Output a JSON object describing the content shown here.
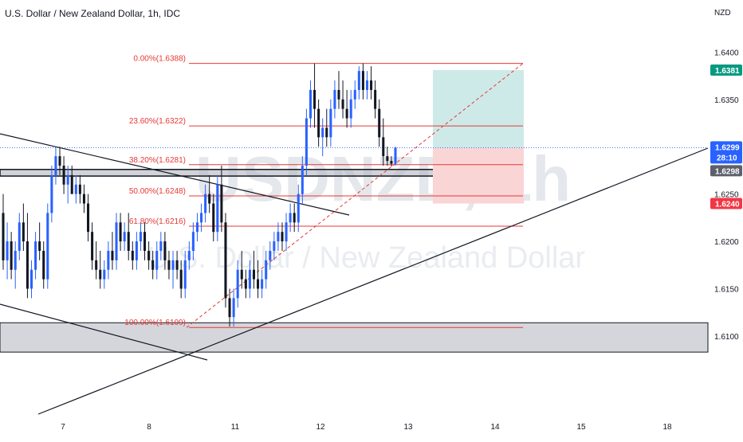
{
  "header": {
    "title": "U.S. Dollar / New Zealand Dollar, 1h, IDC",
    "currency": "NZD"
  },
  "watermark": {
    "symbol": "USDNZD, 1h",
    "name": "U.S. Dollar / New Zealand Dollar"
  },
  "colors": {
    "up": "#2962ff",
    "down": "#131722",
    "fib": "#e53935",
    "target_zone": "#cdeae8",
    "stop_zone": "#f9d5d5",
    "price_tag": "#2962ff",
    "target_tag": "#089981",
    "stop_tag": "#f23645",
    "bid_tag": "#131722",
    "zone_gray": "#9e9e9e"
  },
  "price_labels": {
    "target": "1.6381",
    "current": "1.6299",
    "countdown": "28:10",
    "bid": "1.6298",
    "stop": "1.6240"
  },
  "chart_data": {
    "type": "candlestick",
    "title": "U.S. Dollar / New Zealand Dollar, 1h, IDC",
    "ylim": [
      1.6073,
      1.6418
    ],
    "y_ticks": [
      "1.6400",
      "1.6350",
      "1.6250",
      "1.6200",
      "1.6150",
      "1.6100"
    ],
    "x_ticks": [
      "7",
      "8",
      "11",
      "12",
      "13",
      "14",
      "15",
      "18"
    ],
    "fibonacci": [
      {
        "label": "0.00%(1.6388)",
        "price": 1.6388
      },
      {
        "label": "23.60%(1.6322)",
        "price": 1.6322
      },
      {
        "label": "38.20%(1.6281)",
        "price": 1.6281
      },
      {
        "label": "50.00%(1.6248)",
        "price": 1.6248
      },
      {
        "label": "61.80%(1.6216)",
        "price": 1.6216
      },
      {
        "label": "100.00%(1.6109)",
        "price": 1.6109
      }
    ],
    "position": {
      "entry": 1.6299,
      "target": 1.6381,
      "stop": 1.624
    },
    "zones": [
      {
        "name": "resistance-band",
        "from": 1.6269,
        "to": 1.6276
      },
      {
        "name": "support-zone",
        "from": 1.6083,
        "to": 1.6114
      }
    ],
    "candles": [
      [
        1.623,
        1.625,
        1.617,
        1.618
      ],
      [
        1.618,
        1.622,
        1.616,
        1.62
      ],
      [
        1.62,
        1.621,
        1.616,
        1.617
      ],
      [
        1.617,
        1.62,
        1.615,
        1.619
      ],
      [
        1.619,
        1.623,
        1.618,
        1.622
      ],
      [
        1.622,
        1.624,
        1.619,
        1.62
      ],
      [
        1.62,
        1.623,
        1.614,
        1.615
      ],
      [
        1.615,
        1.618,
        1.614,
        1.617
      ],
      [
        1.617,
        1.621,
        1.616,
        1.62
      ],
      [
        1.62,
        1.622,
        1.618,
        1.619
      ],
      [
        1.619,
        1.62,
        1.615,
        1.616
      ],
      [
        1.616,
        1.624,
        1.615,
        1.623
      ],
      [
        1.623,
        1.628,
        1.622,
        1.627
      ],
      [
        1.627,
        1.63,
        1.626,
        1.629
      ],
      [
        1.629,
        1.63,
        1.627,
        1.628
      ],
      [
        1.628,
        1.629,
        1.625,
        1.626
      ],
      [
        1.626,
        1.628,
        1.624,
        1.627
      ],
      [
        1.627,
        1.628,
        1.625,
        1.625
      ],
      [
        1.625,
        1.627,
        1.624,
        1.626
      ],
      [
        1.626,
        1.627,
        1.624,
        1.625
      ],
      [
        1.625,
        1.626,
        1.623,
        1.624
      ],
      [
        1.624,
        1.625,
        1.62,
        1.621
      ],
      [
        1.621,
        1.622,
        1.617,
        1.618
      ],
      [
        1.618,
        1.62,
        1.616,
        1.617
      ],
      [
        1.617,
        1.619,
        1.615,
        1.616
      ],
      [
        1.616,
        1.618,
        1.615,
        1.617
      ],
      [
        1.617,
        1.62,
        1.616,
        1.619
      ],
      [
        1.619,
        1.621,
        1.617,
        1.618
      ],
      [
        1.618,
        1.623,
        1.617,
        1.622
      ],
      [
        1.622,
        1.623,
        1.619,
        1.62
      ],
      [
        1.62,
        1.622,
        1.619,
        1.621
      ],
      [
        1.621,
        1.623,
        1.618,
        1.619
      ],
      [
        1.619,
        1.62,
        1.617,
        1.618
      ],
      [
        1.618,
        1.621,
        1.617,
        1.62
      ],
      [
        1.62,
        1.622,
        1.619,
        1.621
      ],
      [
        1.621,
        1.622,
        1.618,
        1.619
      ],
      [
        1.619,
        1.62,
        1.617,
        1.618
      ],
      [
        1.618,
        1.619,
        1.616,
        1.617
      ],
      [
        1.617,
        1.62,
        1.616,
        1.619
      ],
      [
        1.619,
        1.621,
        1.618,
        1.62
      ],
      [
        1.62,
        1.621,
        1.617,
        1.618
      ],
      [
        1.618,
        1.619,
        1.616,
        1.617
      ],
      [
        1.617,
        1.619,
        1.615,
        1.618
      ],
      [
        1.618,
        1.619,
        1.616,
        1.617
      ],
      [
        1.617,
        1.618,
        1.614,
        1.615
      ],
      [
        1.615,
        1.619,
        1.614,
        1.618
      ],
      [
        1.618,
        1.62,
        1.617,
        1.619
      ],
      [
        1.619,
        1.622,
        1.618,
        1.621
      ],
      [
        1.621,
        1.623,
        1.62,
        1.622
      ],
      [
        1.622,
        1.624,
        1.621,
        1.623
      ],
      [
        1.623,
        1.626,
        1.622,
        1.625
      ],
      [
        1.625,
        1.627,
        1.623,
        1.624
      ],
      [
        1.624,
        1.625,
        1.62,
        1.621
      ],
      [
        1.621,
        1.627,
        1.62,
        1.626
      ],
      [
        1.626,
        1.628,
        1.621,
        1.622
      ],
      [
        1.622,
        1.623,
        1.613,
        1.614
      ],
      [
        1.614,
        1.615,
        1.611,
        1.612
      ],
      [
        1.612,
        1.615,
        1.611,
        1.614
      ],
      [
        1.614,
        1.618,
        1.613,
        1.617
      ],
      [
        1.617,
        1.619,
        1.615,
        1.616
      ],
      [
        1.616,
        1.617,
        1.614,
        1.615
      ],
      [
        1.615,
        1.618,
        1.614,
        1.617
      ],
      [
        1.617,
        1.619,
        1.615,
        1.616
      ],
      [
        1.616,
        1.618,
        1.614,
        1.615
      ],
      [
        1.615,
        1.617,
        1.614,
        1.616
      ],
      [
        1.616,
        1.619,
        1.615,
        1.618
      ],
      [
        1.618,
        1.62,
        1.617,
        1.619
      ],
      [
        1.619,
        1.621,
        1.618,
        1.62
      ],
      [
        1.62,
        1.622,
        1.619,
        1.621
      ],
      [
        1.621,
        1.622,
        1.619,
        1.62
      ],
      [
        1.62,
        1.623,
        1.619,
        1.622
      ],
      [
        1.622,
        1.624,
        1.621,
        1.623
      ],
      [
        1.623,
        1.624,
        1.621,
        1.622
      ],
      [
        1.622,
        1.626,
        1.621,
        1.625
      ],
      [
        1.625,
        1.629,
        1.624,
        1.628
      ],
      [
        1.628,
        1.634,
        1.627,
        1.633
      ],
      [
        1.633,
        1.637,
        1.632,
        1.636
      ],
      [
        1.636,
        1.6388,
        1.632,
        1.634
      ],
      [
        1.634,
        1.635,
        1.63,
        1.631
      ],
      [
        1.631,
        1.633,
        1.629,
        1.632
      ],
      [
        1.632,
        1.634,
        1.63,
        1.631
      ],
      [
        1.631,
        1.635,
        1.63,
        1.634
      ],
      [
        1.634,
        1.637,
        1.633,
        1.636
      ],
      [
        1.636,
        1.638,
        1.634,
        1.635
      ],
      [
        1.635,
        1.637,
        1.633,
        1.634
      ],
      [
        1.634,
        1.636,
        1.632,
        1.633
      ],
      [
        1.633,
        1.636,
        1.632,
        1.635
      ],
      [
        1.635,
        1.637,
        1.634,
        1.636
      ],
      [
        1.636,
        1.6385,
        1.635,
        1.638
      ],
      [
        1.638,
        1.6388,
        1.635,
        1.636
      ],
      [
        1.636,
        1.638,
        1.635,
        1.637
      ],
      [
        1.637,
        1.6385,
        1.635,
        1.636
      ],
      [
        1.636,
        1.637,
        1.633,
        1.634
      ],
      [
        1.634,
        1.635,
        1.63,
        1.631
      ],
      [
        1.631,
        1.633,
        1.628,
        1.629
      ],
      [
        1.629,
        1.63,
        1.628,
        1.6285
      ],
      [
        1.6285,
        1.629,
        1.6279,
        1.6282
      ],
      [
        1.6282,
        1.63,
        1.628,
        1.6299
      ]
    ]
  }
}
